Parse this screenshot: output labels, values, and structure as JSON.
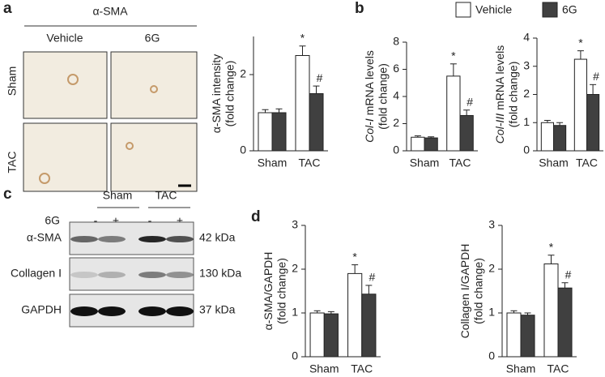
{
  "panel_labels": [
    "a",
    "b",
    "c",
    "d"
  ],
  "micrograph": {
    "title": "α-SMA",
    "columns": [
      "Vehicle",
      "6G"
    ],
    "rows": [
      "Sham",
      "TAC"
    ]
  },
  "blot": {
    "groups": [
      "Sham",
      "TAC"
    ],
    "treatment": "6G",
    "lanes": [
      "-",
      "+",
      "-",
      "+"
    ],
    "rows": [
      {
        "name": "α-SMA",
        "size": "42 kDa"
      },
      {
        "name": "Collagen I",
        "size": "130 kDa"
      },
      {
        "name": "GAPDH",
        "size": "37 kDa"
      }
    ]
  },
  "chart_data": [
    {
      "type": "bar",
      "ylabel": [
        "α-SMA intensity",
        "(fold change)"
      ],
      "categories": [
        "Sham",
        "TAC"
      ],
      "series": [
        {
          "name": "Vehicle",
          "color": "#ffffff",
          "values": [
            1.0,
            2.5
          ],
          "errors": [
            0.08,
            0.25
          ],
          "sig_labels": [
            null,
            "*"
          ]
        },
        {
          "name": "6G",
          "color": "#404040",
          "values": [
            1.0,
            1.5
          ],
          "errors": [
            0.1,
            0.2
          ],
          "sig_labels": [
            null,
            "#"
          ]
        }
      ],
      "ylim": [
        0,
        3
      ],
      "yticks": [
        0,
        2
      ]
    },
    {
      "type": "bar",
      "ylabel_gene": "Col-I",
      "ylabel": [
        "mRNA levels",
        "(fold change)"
      ],
      "categories": [
        "Sham",
        "TAC"
      ],
      "series": [
        {
          "name": "Vehicle",
          "color": "#ffffff",
          "values": [
            1.0,
            5.5
          ],
          "errors": [
            0.1,
            0.9
          ],
          "sig_labels": [
            null,
            "*"
          ]
        },
        {
          "name": "6G",
          "color": "#404040",
          "values": [
            0.95,
            2.6
          ],
          "errors": [
            0.08,
            0.4
          ],
          "sig_labels": [
            null,
            "#"
          ]
        }
      ],
      "ylim": [
        0,
        8
      ],
      "yticks": [
        0,
        2,
        4,
        6,
        8
      ]
    },
    {
      "type": "bar",
      "ylabel_gene": "Col-III",
      "ylabel": [
        "mRNA levels",
        "(fold change)"
      ],
      "categories": [
        "Sham",
        "TAC"
      ],
      "series": [
        {
          "name": "Vehicle",
          "color": "#ffffff",
          "values": [
            1.0,
            3.25
          ],
          "errors": [
            0.08,
            0.3
          ],
          "sig_labels": [
            null,
            "*"
          ]
        },
        {
          "name": "6G",
          "color": "#404040",
          "values": [
            0.9,
            2.0
          ],
          "errors": [
            0.1,
            0.35
          ],
          "sig_labels": [
            null,
            "#"
          ]
        }
      ],
      "ylim": [
        0,
        4
      ],
      "yticks": [
        0,
        1,
        2,
        3,
        4
      ]
    },
    {
      "type": "bar",
      "ylabel": [
        "α-SMA/GAPDH",
        "(fold change)"
      ],
      "categories": [
        "Sham",
        "TAC"
      ],
      "series": [
        {
          "name": "Vehicle",
          "color": "#ffffff",
          "values": [
            1.0,
            1.9
          ],
          "errors": [
            0.05,
            0.2
          ],
          "sig_labels": [
            null,
            "*"
          ]
        },
        {
          "name": "6G",
          "color": "#404040",
          "values": [
            0.98,
            1.43
          ],
          "errors": [
            0.05,
            0.2
          ],
          "sig_labels": [
            null,
            "#"
          ]
        }
      ],
      "ylim": [
        0,
        3
      ],
      "yticks": [
        0,
        1,
        2,
        3
      ]
    },
    {
      "type": "bar",
      "ylabel": [
        "Collagen I/GAPDH",
        "(fold change)"
      ],
      "categories": [
        "Sham",
        "TAC"
      ],
      "series": [
        {
          "name": "Vehicle",
          "color": "#ffffff",
          "values": [
            1.0,
            2.12
          ],
          "errors": [
            0.05,
            0.2
          ],
          "sig_labels": [
            null,
            "*"
          ]
        },
        {
          "name": "6G",
          "color": "#404040",
          "values": [
            0.95,
            1.57
          ],
          "errors": [
            0.05,
            0.12
          ],
          "sig_labels": [
            null,
            "#"
          ]
        }
      ],
      "ylim": [
        0,
        3
      ],
      "yticks": [
        0,
        1,
        2,
        3
      ]
    }
  ]
}
